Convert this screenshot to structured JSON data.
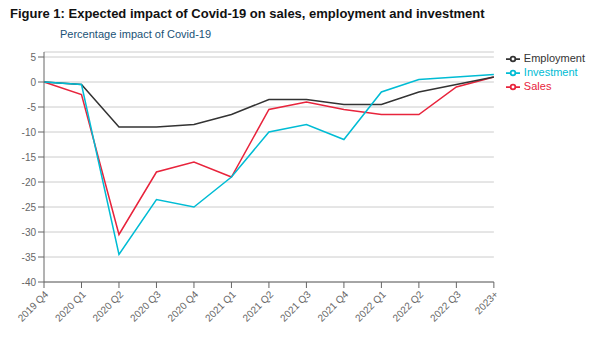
{
  "chart_data": {
    "type": "line",
    "title": "Figure 1: Expected impact of Covid-19 on sales, employment and investment",
    "ylabel": "Percentage impact of Covid-19",
    "categories": [
      "2019 Q4",
      "2020 Q1",
      "2020 Q2",
      "2020 Q3",
      "2020 Q4",
      "2021 Q1",
      "2021 Q2",
      "2021 Q3",
      "2021 Q4",
      "2022 Q1",
      "2022 Q2",
      "2022 Q3",
      "2023+"
    ],
    "series": [
      {
        "name": "Sales",
        "color": "#e8243c",
        "values": [
          0,
          -2.5,
          -30.5,
          -18.0,
          -16.0,
          -19.0,
          -5.5,
          -4.0,
          -5.5,
          -6.5,
          -6.5,
          -1.0,
          1.0
        ]
      },
      {
        "name": "Employment",
        "color": "#333333",
        "values": [
          0,
          -0.5,
          -9.0,
          -9.0,
          -8.5,
          -6.5,
          -3.5,
          -3.5,
          -4.5,
          -4.5,
          -2.0,
          -0.5,
          1.0
        ]
      },
      {
        "name": "Investment",
        "color": "#00bcd4",
        "values": [
          0,
          -0.5,
          -34.5,
          -23.5,
          -25.0,
          -19.0,
          -10.0,
          -8.5,
          -11.5,
          -2.0,
          0.5,
          1.0,
          1.5
        ]
      }
    ],
    "ylim": [
      -40,
      6
    ],
    "yticks": [
      5,
      0,
      -5,
      -10,
      -15,
      -20,
      -25,
      -30,
      -35,
      -40
    ],
    "grid": true,
    "legend": "right"
  }
}
